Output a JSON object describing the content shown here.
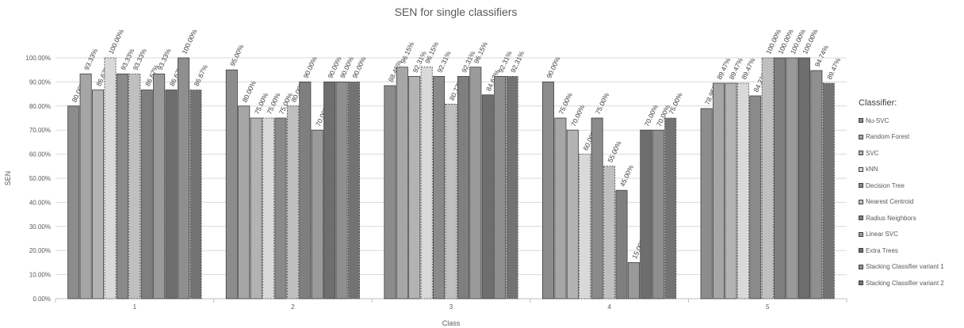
{
  "chart_data": {
    "type": "bar",
    "title": "SEN for single classifiers",
    "xlabel": "Class",
    "ylabel": "SEN",
    "ylim": [
      0,
      100
    ],
    "yticks": [
      "0.00%",
      "10.00%",
      "20.00%",
      "30.00%",
      "40.00%",
      "50.00%",
      "60.00%",
      "70.00%",
      "80.00%",
      "90.00%",
      "100.00%"
    ],
    "categories": [
      "1",
      "2",
      "3",
      "4",
      "5"
    ],
    "legend_title": "Classifier:",
    "legend_position": "right",
    "grid": true,
    "series": [
      {
        "name": "Nu-SVC",
        "color": "#8c8c8c",
        "values": [
          80.0,
          95.0,
          88.46,
          90.0,
          78.95
        ],
        "labels": [
          "80.00%",
          "95.00%",
          "88.46%",
          "90.00%",
          "78.95%"
        ]
      },
      {
        "name": "Random Forest",
        "color": "#a6a6a6",
        "values": [
          93.33,
          80.0,
          96.15,
          75.0,
          89.47
        ],
        "labels": [
          "93.33%",
          "80.00%",
          "96.15%",
          "75.00%",
          "89.47%"
        ]
      },
      {
        "name": "SVC",
        "color": "#b3b3b3",
        "values": [
          86.67,
          75.0,
          92.31,
          70.0,
          89.47
        ],
        "labels": [
          "86.67%",
          "75.00%",
          "92.31%",
          "70.00%",
          "89.47%"
        ]
      },
      {
        "name": "kNN",
        "color": "#d9d9d9",
        "values": [
          100.0,
          75.0,
          96.15,
          60.0,
          89.47
        ],
        "labels": [
          "100.00%",
          "75.00%",
          "96.15%",
          "60.00%",
          "89.47%"
        ]
      },
      {
        "name": "Decision Tree",
        "color": "#8a8a8a",
        "values": [
          93.33,
          75.0,
          92.31,
          75.0,
          84.21
        ],
        "labels": [
          "93.33%",
          "75.00%",
          "92.31%",
          "75.00%",
          "84.21%"
        ]
      },
      {
        "name": "Nearest Centroid",
        "color": "#bfbfbf",
        "values": [
          93.33,
          80.0,
          80.77,
          55.0,
          100.0
        ],
        "labels": [
          "93.33%",
          "80.00%",
          "80.77%",
          "55.00%",
          "100.00%"
        ]
      },
      {
        "name": "Radius Neighbors",
        "color": "#7f7f7f",
        "values": [
          86.67,
          90.0,
          92.31,
          45.0,
          100.0
        ],
        "labels": [
          "86.67%",
          "90.00%",
          "92.31%",
          "45.00%",
          "100.00%"
        ]
      },
      {
        "name": "Linear SVC",
        "color": "#9a9a9a",
        "values": [
          93.33,
          70.0,
          96.15,
          15.0,
          100.0
        ],
        "labels": [
          "93.33%",
          "70.00%",
          "96.15%",
          "15.00%",
          "100.00%"
        ]
      },
      {
        "name": "Extra Trees",
        "color": "#6e6e6e",
        "values": [
          86.67,
          90.0,
          84.62,
          70.0,
          100.0
        ],
        "labels": [
          "86.67%",
          "90.00%",
          "84.62%",
          "70.00%",
          "100.00%"
        ]
      },
      {
        "name": "Stacking Classifier variant 1",
        "color": "#8f8f8f",
        "values": [
          100.0,
          90.0,
          92.31,
          70.0,
          94.74
        ],
        "labels": [
          "100.00%",
          "90.00%",
          "92.31%",
          "70.00%",
          "94.74%"
        ]
      },
      {
        "name": "Stacking Classifier variant 2",
        "color": "#737373",
        "values": [
          86.67,
          90.0,
          92.31,
          75.0,
          89.47
        ],
        "labels": [
          "86.67%",
          "90.00%",
          "92.31%",
          "75.00%",
          "89.47%"
        ]
      }
    ]
  }
}
